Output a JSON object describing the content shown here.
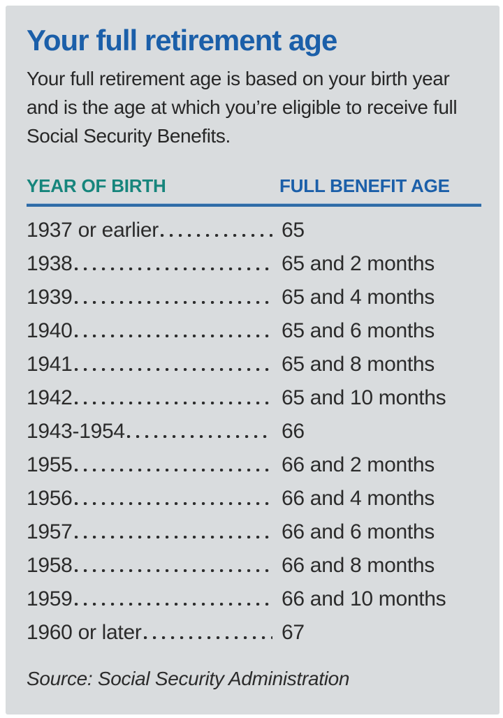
{
  "header": {
    "title": "Your full retirement age",
    "subtitle_lines": [
      "Your full retirement age is based on your birth year",
      "and is the age at which you’re eligible to receive full",
      "Social Security Benefits."
    ]
  },
  "chart_data": {
    "type": "table",
    "title": "Your full retirement age",
    "columns": [
      {
        "label": "YEAR OF BIRTH"
      },
      {
        "label": "FULL BENEFIT AGE"
      }
    ],
    "rows": [
      {
        "year": "1937 or earlier",
        "age": "65"
      },
      {
        "year": "1938",
        "age": "65 and 2 months"
      },
      {
        "year": "1939",
        "age": "65 and 4 months"
      },
      {
        "year": "1940",
        "age": "65 and 6 months"
      },
      {
        "year": "1941",
        "age": "65 and 8 months"
      },
      {
        "year": "1942",
        "age": "65 and 10 months"
      },
      {
        "year": "1943-1954",
        "age": "66"
      },
      {
        "year": "1955",
        "age": "66 and 2 months"
      },
      {
        "year": "1956",
        "age": "66 and 4 months"
      },
      {
        "year": "1957",
        "age": "66 and 6 months"
      },
      {
        "year": "1958",
        "age": "66 and 8 months"
      },
      {
        "year": "1959",
        "age": "66 and 10 months"
      },
      {
        "year": "1960 or later",
        "age": "67"
      }
    ]
  },
  "footer": {
    "source": "Source: Social Security Administration"
  },
  "colors": {
    "title_blue": "#1b5fa9",
    "header_teal": "#16857c",
    "header_blue": "#1b5fa9",
    "rule_blue": "#2e6ba7",
    "panel_background": "#d9dcde",
    "body_text": "#2b2b2b",
    "page_border": "#ffffff"
  }
}
